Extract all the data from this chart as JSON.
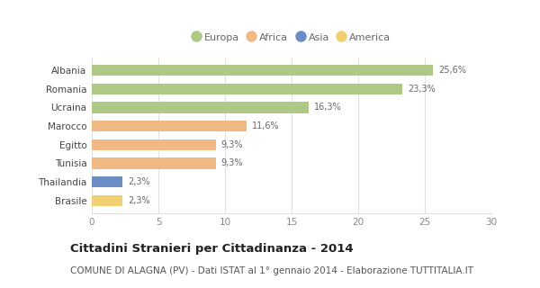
{
  "categories": [
    "Albania",
    "Romania",
    "Ucraina",
    "Marocco",
    "Egitto",
    "Tunisia",
    "Thailandia",
    "Brasile"
  ],
  "values": [
    25.6,
    23.3,
    16.3,
    11.6,
    9.3,
    9.3,
    2.3,
    2.3
  ],
  "labels": [
    "25,6%",
    "23,3%",
    "16,3%",
    "11,6%",
    "9,3%",
    "9,3%",
    "2,3%",
    "2,3%"
  ],
  "colors": [
    "#adc985",
    "#adc985",
    "#adc985",
    "#f0b882",
    "#f0b882",
    "#f0b882",
    "#6b8dc4",
    "#f0d070"
  ],
  "legend_items": [
    {
      "label": "Europa",
      "color": "#adc985"
    },
    {
      "label": "Africa",
      "color": "#f0b882"
    },
    {
      "label": "Asia",
      "color": "#6b8dc4"
    },
    {
      "label": "America",
      "color": "#f0d070"
    }
  ],
  "xlim": [
    0,
    30
  ],
  "xticks": [
    0,
    5,
    10,
    15,
    20,
    25,
    30
  ],
  "title": "Cittadini Stranieri per Cittadinanza - 2014",
  "subtitle": "COMUNE DI ALAGNA (PV) - Dati ISTAT al 1° gennaio 2014 - Elaborazione TUTTITALIA.IT",
  "title_fontsize": 9.5,
  "subtitle_fontsize": 7.5,
  "background_color": "#ffffff",
  "grid_color": "#e0e0e0",
  "bar_height": 0.6
}
